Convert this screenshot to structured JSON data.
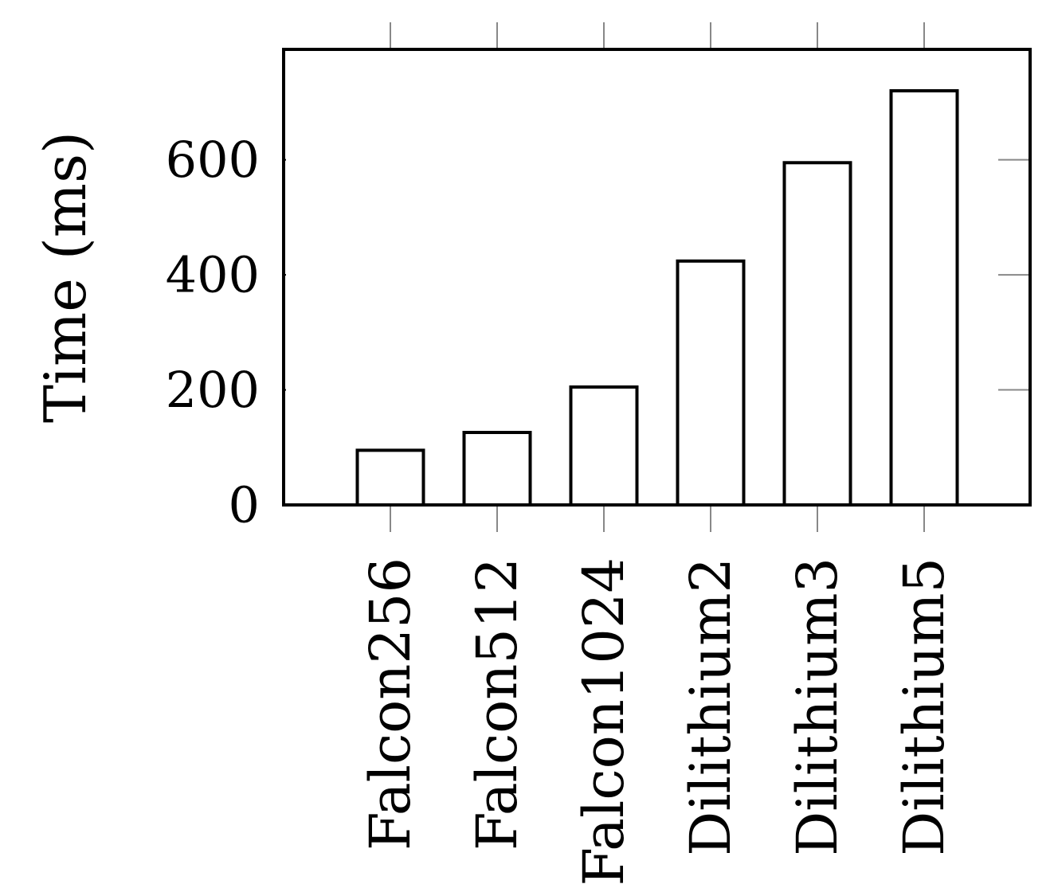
{
  "chart_data": {
    "type": "bar",
    "title": "",
    "xlabel": "",
    "ylabel": "Time (ms)",
    "categories": [
      "Falcon256",
      "Falcon512",
      "Falcon1024",
      "Dilithium2",
      "Dilithium3",
      "Dilithium5"
    ],
    "values": [
      95,
      126,
      205,
      424,
      595,
      720
    ],
    "ylim": [
      0,
      792
    ],
    "yticks": [
      0,
      200,
      400,
      600
    ],
    "ytick_labels": [
      "0",
      "200",
      "400",
      "600"
    ],
    "grid": false,
    "bar_fill": "#ffffff",
    "bar_stroke": "#000000",
    "tick_color": "#888888"
  }
}
